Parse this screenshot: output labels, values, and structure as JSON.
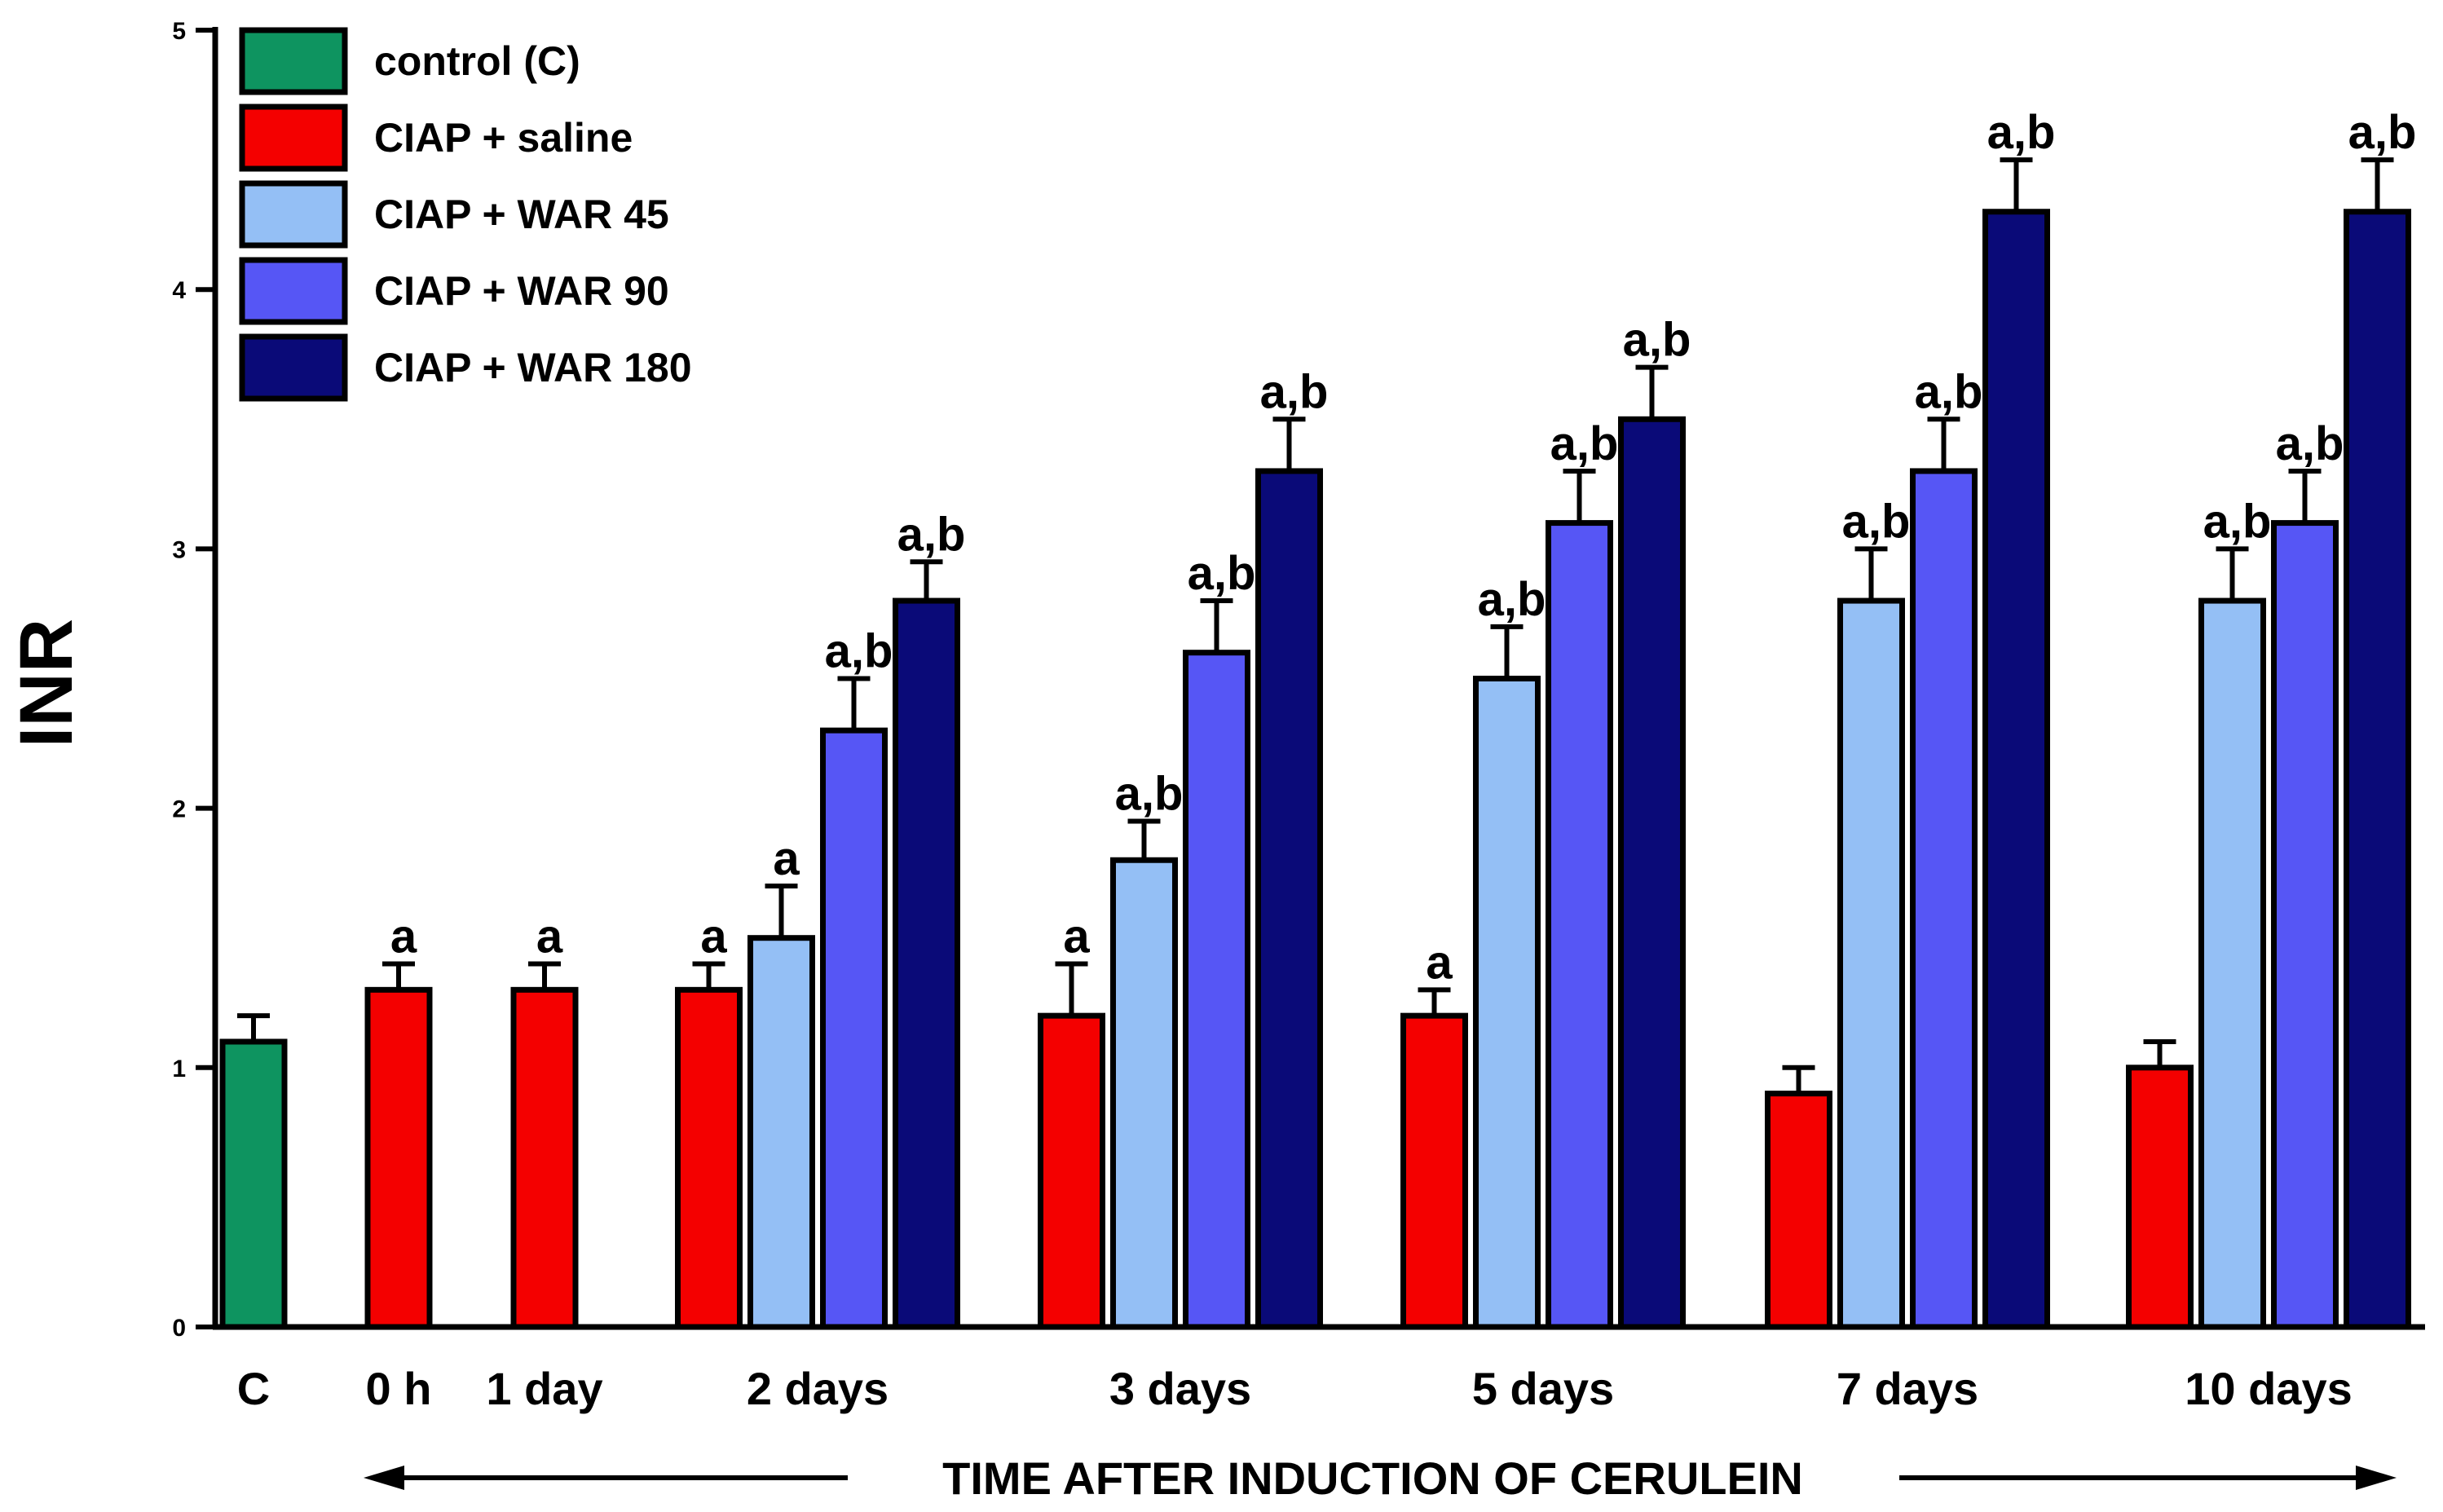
{
  "chart_data": {
    "type": "bar",
    "title": "",
    "xlabel": "TIME AFTER INDUCTION OF CERULEIN",
    "ylabel": "INR",
    "ylim": [
      0,
      5
    ],
    "yticks": [
      "0",
      "1",
      "2",
      "3",
      "4",
      "5"
    ],
    "legend_position": "top-left",
    "series": [
      {
        "name": "control (C)",
        "color": "#0e9460"
      },
      {
        "name": "CIAP + saline",
        "color": "#f40000"
      },
      {
        "name": "CIAP + WAR 45",
        "color": "#94bff5"
      },
      {
        "name": "CIAP + WAR 90",
        "color": "#5656f5"
      },
      {
        "name": "CIAP + WAR 180",
        "color": "#0a0a78"
      }
    ],
    "groups": [
      {
        "label": "C",
        "bars": [
          {
            "series": "control (C)",
            "value": 1.1,
            "error": 0.1,
            "annotation": ""
          }
        ]
      },
      {
        "label": "0 h",
        "bars": [
          {
            "series": "CIAP + saline",
            "value": 1.3,
            "error": 0.1,
            "annotation": "a"
          }
        ]
      },
      {
        "label": "1 day",
        "bars": [
          {
            "series": "CIAP + saline",
            "value": 1.3,
            "error": 0.1,
            "annotation": "a"
          }
        ]
      },
      {
        "label": "2 days",
        "bars": [
          {
            "series": "CIAP + saline",
            "value": 1.3,
            "error": 0.1,
            "annotation": "a"
          },
          {
            "series": "CIAP + WAR 45",
            "value": 1.5,
            "error": 0.2,
            "annotation": "a"
          },
          {
            "series": "CIAP + WAR 90",
            "value": 2.3,
            "error": 0.2,
            "annotation": "a,b"
          },
          {
            "series": "CIAP + WAR 180",
            "value": 2.8,
            "error": 0.15,
            "annotation": "a,b"
          }
        ]
      },
      {
        "label": "3 days",
        "bars": [
          {
            "series": "CIAP + saline",
            "value": 1.2,
            "error": 0.2,
            "annotation": "a"
          },
          {
            "series": "CIAP + WAR 45",
            "value": 1.8,
            "error": 0.15,
            "annotation": "a,b"
          },
          {
            "series": "CIAP + WAR 90",
            "value": 2.6,
            "error": 0.2,
            "annotation": "a,b"
          },
          {
            "series": "CIAP + WAR 180",
            "value": 3.3,
            "error": 0.2,
            "annotation": "a,b"
          }
        ]
      },
      {
        "label": "5 days",
        "bars": [
          {
            "series": "CIAP + saline",
            "value": 1.2,
            "error": 0.1,
            "annotation": "a"
          },
          {
            "series": "CIAP + WAR 45",
            "value": 2.5,
            "error": 0.2,
            "annotation": "a,b"
          },
          {
            "series": "CIAP + WAR 90",
            "value": 3.1,
            "error": 0.2,
            "annotation": "a,b"
          },
          {
            "series": "CIAP + WAR 180",
            "value": 3.5,
            "error": 0.2,
            "annotation": "a,b"
          }
        ]
      },
      {
        "label": "7 days",
        "bars": [
          {
            "series": "CIAP + saline",
            "value": 0.9,
            "error": 0.1,
            "annotation": ""
          },
          {
            "series": "CIAP + WAR 45",
            "value": 2.8,
            "error": 0.2,
            "annotation": "a,b"
          },
          {
            "series": "CIAP + WAR 90",
            "value": 3.3,
            "error": 0.2,
            "annotation": "a,b"
          },
          {
            "series": "CIAP + WAR 180",
            "value": 4.3,
            "error": 0.2,
            "annotation": "a,b"
          }
        ]
      },
      {
        "label": "10 days",
        "bars": [
          {
            "series": "CIAP + saline",
            "value": 1.0,
            "error": 0.1,
            "annotation": ""
          },
          {
            "series": "CIAP + WAR 45",
            "value": 2.8,
            "error": 0.2,
            "annotation": "a,b"
          },
          {
            "series": "CIAP + WAR 90",
            "value": 3.1,
            "error": 0.2,
            "annotation": "a,b"
          },
          {
            "series": "CIAP + WAR 180",
            "value": 4.3,
            "error": 0.2,
            "annotation": "a,b"
          }
        ]
      }
    ]
  }
}
